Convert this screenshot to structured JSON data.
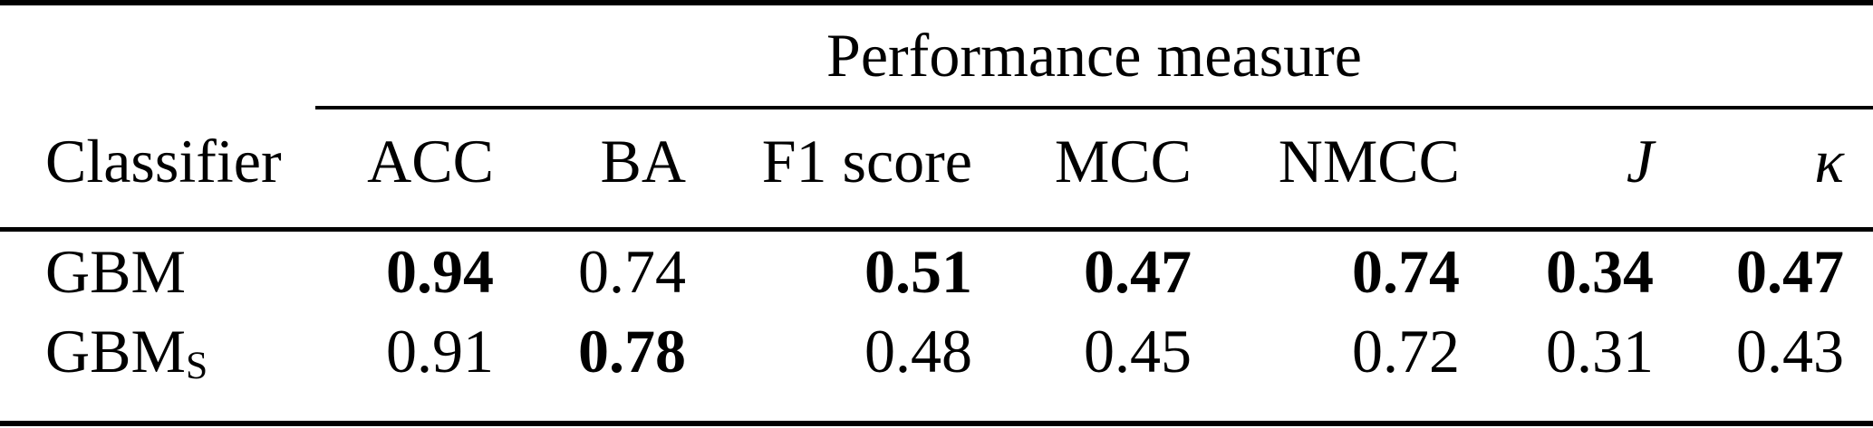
{
  "colors": {
    "text": "#000000",
    "background": "#ffffff",
    "rule": "#000000"
  },
  "table": {
    "group_header": "Performance measure",
    "columns": [
      {
        "label": "Classifier",
        "italic": false
      },
      {
        "label": "ACC",
        "italic": false
      },
      {
        "label": "BA",
        "italic": false
      },
      {
        "label": "F1 score",
        "italic": false
      },
      {
        "label": "MCC",
        "italic": false
      },
      {
        "label": "NMCC",
        "italic": false
      },
      {
        "label": "J",
        "italic": true
      },
      {
        "label": "κ",
        "italic": true
      }
    ],
    "rows": [
      {
        "classifier": {
          "base": "GBM",
          "subscript": ""
        },
        "cells": [
          {
            "value": "0.94",
            "bold": true
          },
          {
            "value": "0.74",
            "bold": false
          },
          {
            "value": "0.51",
            "bold": true
          },
          {
            "value": "0.47",
            "bold": true
          },
          {
            "value": "0.74",
            "bold": true
          },
          {
            "value": "0.34",
            "bold": true
          },
          {
            "value": "0.47",
            "bold": true
          }
        ]
      },
      {
        "classifier": {
          "base": "GBM",
          "subscript": "S"
        },
        "cells": [
          {
            "value": "0.91",
            "bold": false
          },
          {
            "value": "0.78",
            "bold": true
          },
          {
            "value": "0.48",
            "bold": false
          },
          {
            "value": "0.45",
            "bold": false
          },
          {
            "value": "0.72",
            "bold": false
          },
          {
            "value": "0.31",
            "bold": false
          },
          {
            "value": "0.43",
            "bold": false
          }
        ]
      }
    ]
  }
}
